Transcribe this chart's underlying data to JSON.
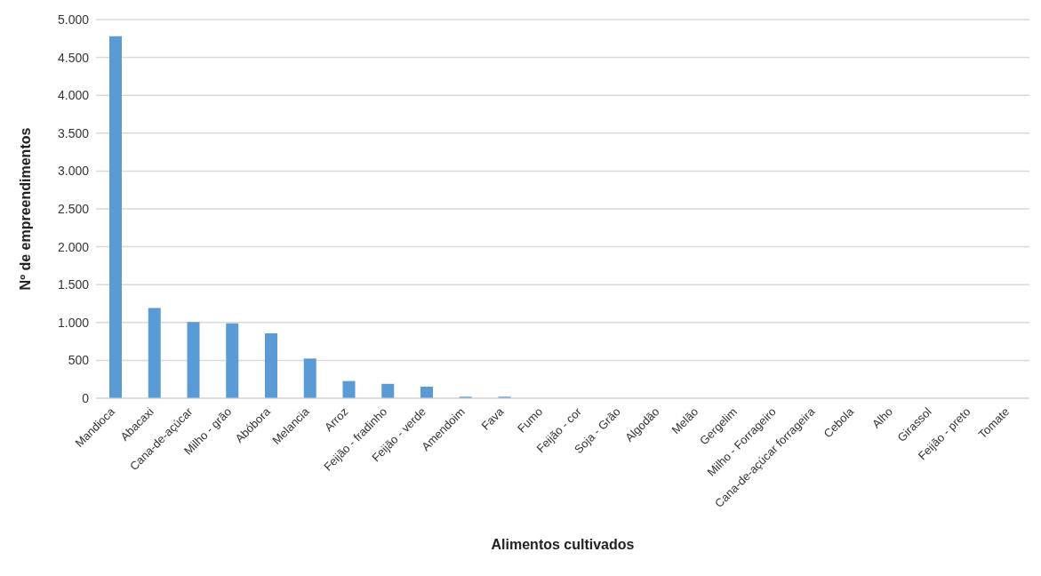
{
  "chart_data": {
    "type": "bar",
    "xlabel": "Alimentos cultivados",
    "ylabel": "Nº de empreendimentos",
    "categories": [
      "Mandioca",
      "Abacaxi",
      "Cana-de-açúcar",
      "Milho - grão",
      "Abóbora",
      "Melancia",
      "Arroz",
      "Feijão - fradinho",
      "Feijão - verde",
      "Amendoim",
      "Fava",
      "Fumo",
      "Feijão - cor",
      "Soja - Grão",
      "Algodão",
      "Melão",
      "Gergelim",
      "Milho - Forrageiro",
      "Cana-de-açúcar forrageira",
      "Cebola",
      "Alho",
      "Girassol",
      "Feijão - preto",
      "Tomate"
    ],
    "values": [
      4780,
      1190,
      1005,
      988,
      858,
      524,
      227,
      190,
      153,
      20,
      20,
      0,
      0,
      0,
      0,
      0,
      0,
      0,
      0,
      0,
      0,
      0,
      0,
      0
    ],
    "color": "#5b9bd5",
    "ylim": [
      0,
      5000
    ],
    "yticks": [
      {
        "value": 0,
        "label": "0"
      },
      {
        "value": 500,
        "label": "500"
      },
      {
        "value": 1000,
        "label": "1.000"
      },
      {
        "value": 1500,
        "label": "1.500"
      },
      {
        "value": 2000,
        "label": "2.000"
      },
      {
        "value": 2500,
        "label": "2.500"
      },
      {
        "value": 3000,
        "label": "3.000"
      },
      {
        "value": 3500,
        "label": "3.500"
      },
      {
        "value": 4000,
        "label": "4.000"
      },
      {
        "value": 4500,
        "label": "4.500"
      },
      {
        "value": 5000,
        "label": "5.000"
      }
    ],
    "grid": "y"
  }
}
